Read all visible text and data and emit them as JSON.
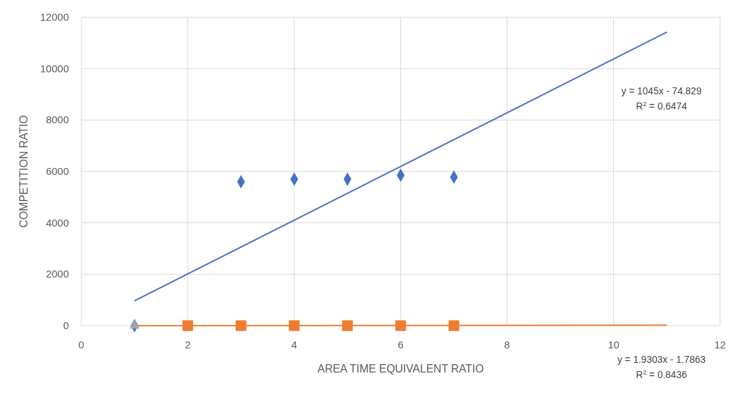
{
  "chart_data": {
    "type": "scatter",
    "xlabel": "AREA TIME EQUIVALENT RATIO",
    "ylabel": "COMPETITION RATIO",
    "xlim": [
      0,
      12
    ],
    "xticks": [
      0,
      2,
      4,
      6,
      8,
      10,
      12
    ],
    "ylim": [
      0,
      12000
    ],
    "yticks": [
      0,
      2000,
      4000,
      6000,
      8000,
      10000,
      12000
    ],
    "grid": true,
    "series": [
      {
        "type": "line",
        "color": "#4472c4",
        "x": [
          1,
          11
        ],
        "values": [
          970,
          11420
        ],
        "line_style": "solid"
      },
      {
        "type": "line",
        "color": "#ed7d31",
        "x": [
          1,
          11
        ],
        "values": [
          0,
          20
        ],
        "line_style": "solid"
      },
      {
        "color": "#4472c4",
        "x": [
          1,
          3,
          4,
          5,
          6,
          7
        ],
        "values": [
          0,
          5600,
          5700,
          5700,
          5850,
          5780
        ],
        "marker": "diamond"
      },
      {
        "color": "#ed7d31",
        "x": [
          2,
          3,
          4,
          5,
          6,
          7
        ],
        "values": [
          0,
          0,
          0,
          0,
          0,
          0
        ],
        "marker": "square"
      },
      {
        "color": "#a5a5a5",
        "x": [
          1
        ],
        "values": [
          0
        ],
        "marker": "triangle"
      }
    ],
    "annotations": [
      "y = 1045x - 74.829\nR$^{2}$ = 0.6474",
      "y = 1.9303x - 1.7863\nR$^{2}$ = 0.8436"
    ]
  }
}
